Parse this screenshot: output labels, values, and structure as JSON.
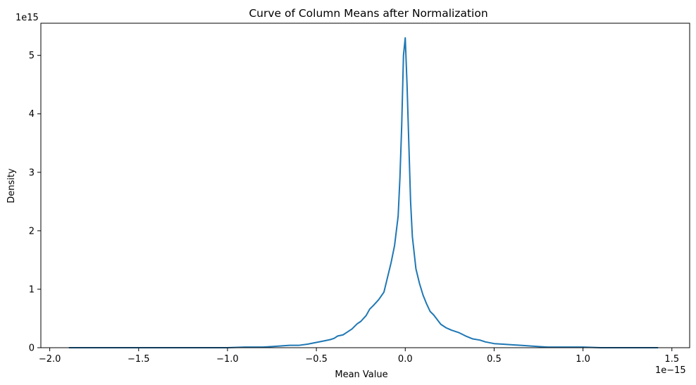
{
  "chart_data": {
    "type": "line",
    "title": "Curve of Column Means after Normalization",
    "xlabel": "Mean Value",
    "ylabel": "Density",
    "x_offset_label": "1e−15",
    "y_offset_label": "1e15",
    "xlim": [
      -2.05,
      1.6
    ],
    "ylim": [
      0,
      5.55
    ],
    "x_ticks": [
      {
        "value": -2.0,
        "label": "−2.0"
      },
      {
        "value": -1.5,
        "label": "−1.5"
      },
      {
        "value": -1.0,
        "label": "−1.0"
      },
      {
        "value": -0.5,
        "label": "−0.5"
      },
      {
        "value": 0.0,
        "label": "0.0"
      },
      {
        "value": 0.5,
        "label": "0.5"
      },
      {
        "value": 1.0,
        "label": "1.0"
      },
      {
        "value": 1.5,
        "label": "1.5"
      }
    ],
    "y_ticks": [
      {
        "value": 0,
        "label": "0"
      },
      {
        "value": 1,
        "label": "1"
      },
      {
        "value": 2,
        "label": "2"
      },
      {
        "value": 3,
        "label": "3"
      },
      {
        "value": 4,
        "label": "4"
      },
      {
        "value": 5,
        "label": "5"
      }
    ],
    "grid": false,
    "line_color": "#1f77b4",
    "series": [
      {
        "x": [
          -1.89,
          -1.7,
          -1.5,
          -1.3,
          -1.1,
          -1.0,
          -0.9,
          -0.85,
          -0.8,
          -0.75,
          -0.7,
          -0.65,
          -0.6,
          -0.55,
          -0.5,
          -0.45,
          -0.42,
          -0.4,
          -0.38,
          -0.35,
          -0.33,
          -0.3,
          -0.27,
          -0.25,
          -0.22,
          -0.2,
          -0.18,
          -0.15,
          -0.12,
          -0.1,
          -0.08,
          -0.06,
          -0.04,
          -0.03,
          -0.02,
          -0.01,
          0.0,
          0.01,
          0.02,
          0.03,
          0.04,
          0.06,
          0.08,
          0.1,
          0.12,
          0.14,
          0.16,
          0.18,
          0.2,
          0.23,
          0.26,
          0.3,
          0.34,
          0.38,
          0.42,
          0.45,
          0.5,
          0.55,
          0.6,
          0.65,
          0.7,
          0.75,
          0.8,
          0.85,
          0.9,
          1.0,
          1.1,
          1.2,
          1.3,
          1.42
        ],
        "values": [
          0.0,
          0.0,
          0.0,
          0.0,
          0.0,
          0.0,
          0.01,
          0.01,
          0.01,
          0.02,
          0.03,
          0.04,
          0.04,
          0.06,
          0.09,
          0.12,
          0.14,
          0.16,
          0.2,
          0.22,
          0.26,
          0.32,
          0.41,
          0.45,
          0.55,
          0.66,
          0.72,
          0.82,
          0.95,
          1.2,
          1.45,
          1.75,
          2.25,
          2.9,
          3.8,
          5.0,
          5.3,
          4.5,
          3.5,
          2.5,
          1.9,
          1.35,
          1.1,
          0.9,
          0.75,
          0.62,
          0.56,
          0.48,
          0.4,
          0.34,
          0.3,
          0.26,
          0.2,
          0.15,
          0.13,
          0.1,
          0.07,
          0.06,
          0.05,
          0.04,
          0.03,
          0.02,
          0.01,
          0.01,
          0.01,
          0.01,
          0.0,
          0.0,
          0.0,
          0.0
        ]
      }
    ]
  }
}
